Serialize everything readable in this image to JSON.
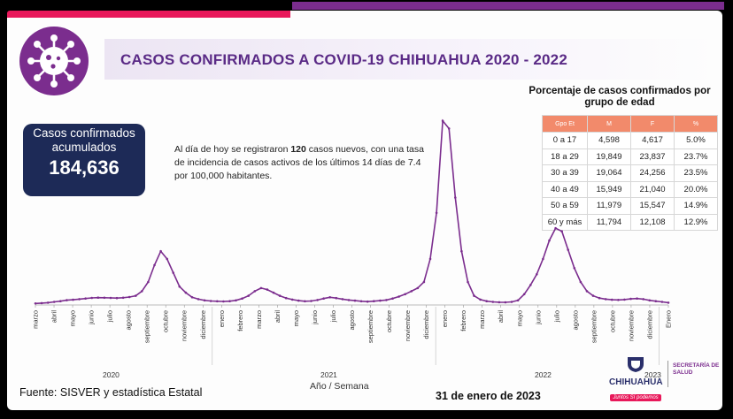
{
  "title": "CASOS CONFIRMADOS A COVID-19 CHIHUAHUA 2020 - 2022",
  "kpi": {
    "label": "Casos confirmados acumulados",
    "value": "184,636"
  },
  "note": {
    "part1": "Al día de hoy se registraron ",
    "new_cases": "120",
    "part2": " casos nuevos, con una tasa de incidencia de casos activos de los últimos 14 días de 7.4 por 100,000 habitantes."
  },
  "age_table": {
    "title": "Porcentaje de casos confirmados por grupo de edad",
    "headers": [
      "Gpo Et",
      "M",
      "F",
      "%"
    ],
    "rows": [
      [
        "0 a 17",
        "4,598",
        "4,617",
        "5.0%"
      ],
      [
        "18 a 29",
        "19,849",
        "23,837",
        "23.7%"
      ],
      [
        "30 a 39",
        "19,064",
        "24,256",
        "23.5%"
      ],
      [
        "40 a 49",
        "15,949",
        "21,040",
        "20.0%"
      ],
      [
        "50 a 59",
        "11,979",
        "15,547",
        "14.9%"
      ],
      [
        "60 y más",
        "11,794",
        "12,108",
        "12.9%"
      ]
    ],
    "header_color": "#f28a6b"
  },
  "chart_data": {
    "type": "line",
    "xlabel": "Año / Semana",
    "years": [
      "2020",
      "2021",
      "2022",
      "2023"
    ],
    "x_tick_labels": [
      "marzo",
      "abril",
      "mayo",
      "junio",
      "julio",
      "agosto",
      "septiembre",
      "octubre",
      "noviembre",
      "diciembre",
      "enero",
      "febrero",
      "marzo",
      "abril",
      "mayo",
      "junio",
      "julio",
      "agosto",
      "septiembre",
      "octubre",
      "noviembre",
      "diciembre",
      "enero",
      "febrero",
      "marzo",
      "abril",
      "mayo",
      "junio",
      "julio",
      "agosto",
      "septiembre",
      "octubre",
      "noviembre",
      "diciembre",
      "Enero"
    ],
    "series": [
      {
        "color": "#7b2d8e",
        "values": [
          100,
          120,
          150,
          200,
          250,
          310,
          340,
          380,
          420,
          460,
          480,
          470,
          460,
          450,
          470,
          520,
          600,
          900,
          1500,
          2600,
          3500,
          3000,
          2100,
          1200,
          800,
          500,
          380,
          300,
          260,
          240,
          230,
          250,
          300,
          420,
          600,
          900,
          1100,
          1000,
          800,
          600,
          450,
          350,
          280,
          240,
          260,
          320,
          420,
          500,
          450,
          380,
          320,
          280,
          240,
          220,
          250,
          280,
          320,
          420,
          550,
          700,
          900,
          1100,
          1500,
          3000,
          6000,
          12000,
          11500,
          7000,
          3500,
          1500,
          600,
          350,
          250,
          200,
          180,
          170,
          200,
          300,
          700,
          1300,
          2000,
          3000,
          4200,
          5000,
          4800,
          3600,
          2400,
          1500,
          900,
          600,
          450,
          380,
          340,
          330,
          350,
          400,
          420,
          380,
          300,
          250,
          200,
          150
        ]
      }
    ],
    "ylim": [
      0,
      12500
    ],
    "grid": false
  },
  "footer": {
    "source": "Fuente: SISVER y estadística Estatal",
    "date": "31 de enero de 2023"
  },
  "branding": {
    "state": "CHIHUAHUA",
    "slogan": "Juntos Sí podemos",
    "secretaria": "SECRETARÍA DE SALUD"
  }
}
